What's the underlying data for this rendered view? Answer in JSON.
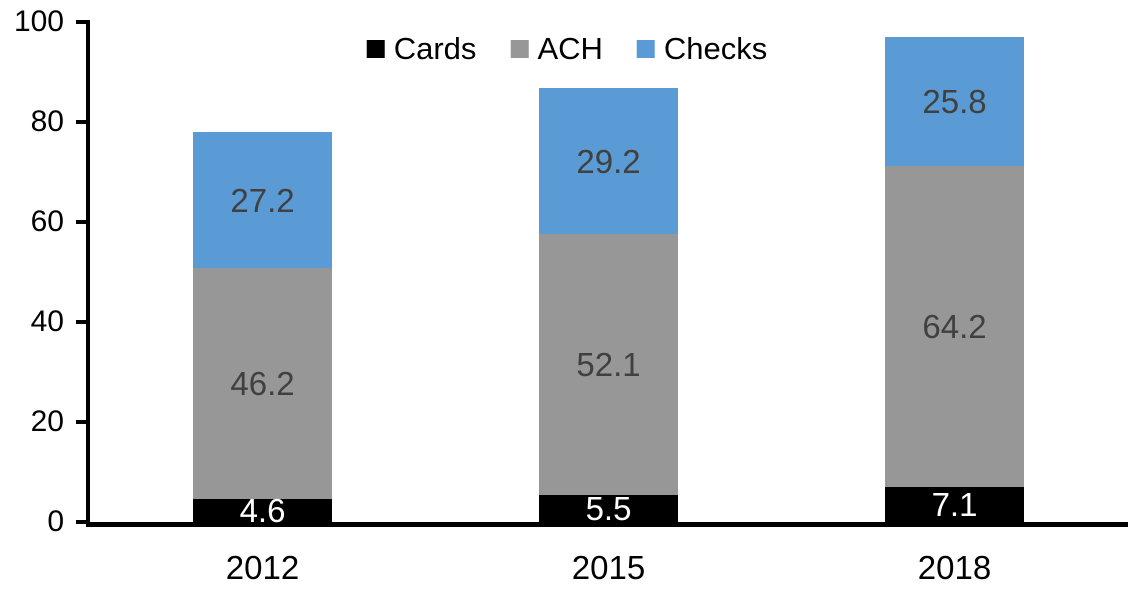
{
  "chart_data": {
    "type": "bar",
    "stacked": true,
    "title": "",
    "categories": [
      "2012",
      "2015",
      "2018"
    ],
    "series": [
      {
        "name": "Cards",
        "color": "#000000",
        "label_color": "#ffffff",
        "values": [
          4.6,
          5.5,
          7.1
        ]
      },
      {
        "name": "ACH",
        "color": "#979797",
        "label_color": "#404040",
        "values": [
          46.2,
          52.1,
          64.2
        ]
      },
      {
        "name": "Checks",
        "color": "#5B9BD5",
        "label_color": "#404040",
        "values": [
          27.2,
          29.2,
          25.8
        ]
      }
    ],
    "totals": [
      78.0,
      86.8,
      97.1
    ],
    "ylim": [
      0,
      100
    ],
    "yticks": [
      0,
      20,
      40,
      60,
      80,
      100
    ],
    "xlabel": "",
    "ylabel": "",
    "grid": false,
    "legend": {
      "position": "top",
      "entries": [
        "Cards",
        "ACH",
        "Checks"
      ]
    },
    "axis_color": "#000000",
    "background": "#ffffff"
  }
}
